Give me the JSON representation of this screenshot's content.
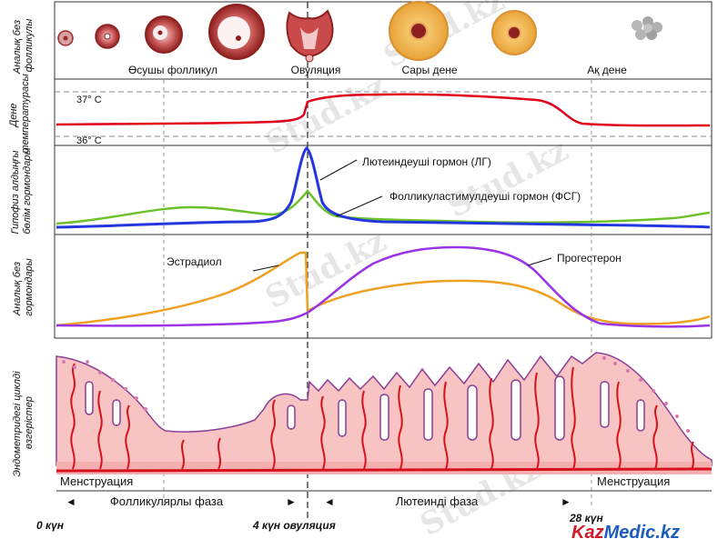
{
  "side_labels": {
    "ovarian_follicles": [
      "Аналық без",
      "фолликулы"
    ],
    "body_temperature": [
      "Дене",
      "температурасы"
    ],
    "pituitary_hormones": [
      "Гипофиз алдыңғы",
      "бөлім гормондары"
    ],
    "ovarian_hormones": [
      "Аналық без",
      "гормондары"
    ],
    "endometrium": [
      "Эндометридегі циклді",
      "өзгерістер"
    ]
  },
  "ovary_stages": {
    "growing_follicle": "Өсушы фолликул",
    "ovulation": "Овуляция",
    "yellow_body": "Сары дене",
    "white_body": "Ақ дене"
  },
  "temperature": {
    "high": "37° С",
    "low": "36° С"
  },
  "hormones": {
    "lh_label": "Лютеиндеуші гормон (ЛГ)",
    "fsh_label": "Фолликуластимулдеуші гормон (ФСГ)",
    "estradiol_label": "Эстрадиол",
    "progesterone_label": "Прогестерон"
  },
  "phases": {
    "menstruation_start": "Менструация",
    "menstruation_end": "Менструация",
    "follicular": "Фолликулярлы фаза",
    "luteal": "Лютеинді фаза"
  },
  "timeline": {
    "day0": "0 күн",
    "ovulation_day": "4 күн овуляция",
    "day28": "28 күн"
  },
  "watermark": "Stud.kz",
  "brand": {
    "kaz": "Kaz",
    "medic": "Medic",
    "kz": ".kz"
  },
  "colors": {
    "temperature_line": "#e0001b",
    "lh_line": "#2336e0",
    "fsh_line": "#6cc12a",
    "estradiol_line": "#f0a020",
    "progesterone_line": "#9b32e6",
    "endometrium_fill": "#f7c3c3",
    "vessel": "#d6121c",
    "gland": "#8a3e96"
  },
  "icons": [
    "growing-follicle-icon",
    "ovulation-icon",
    "corpus-luteum-icon",
    "corpus-albicans-icon"
  ]
}
